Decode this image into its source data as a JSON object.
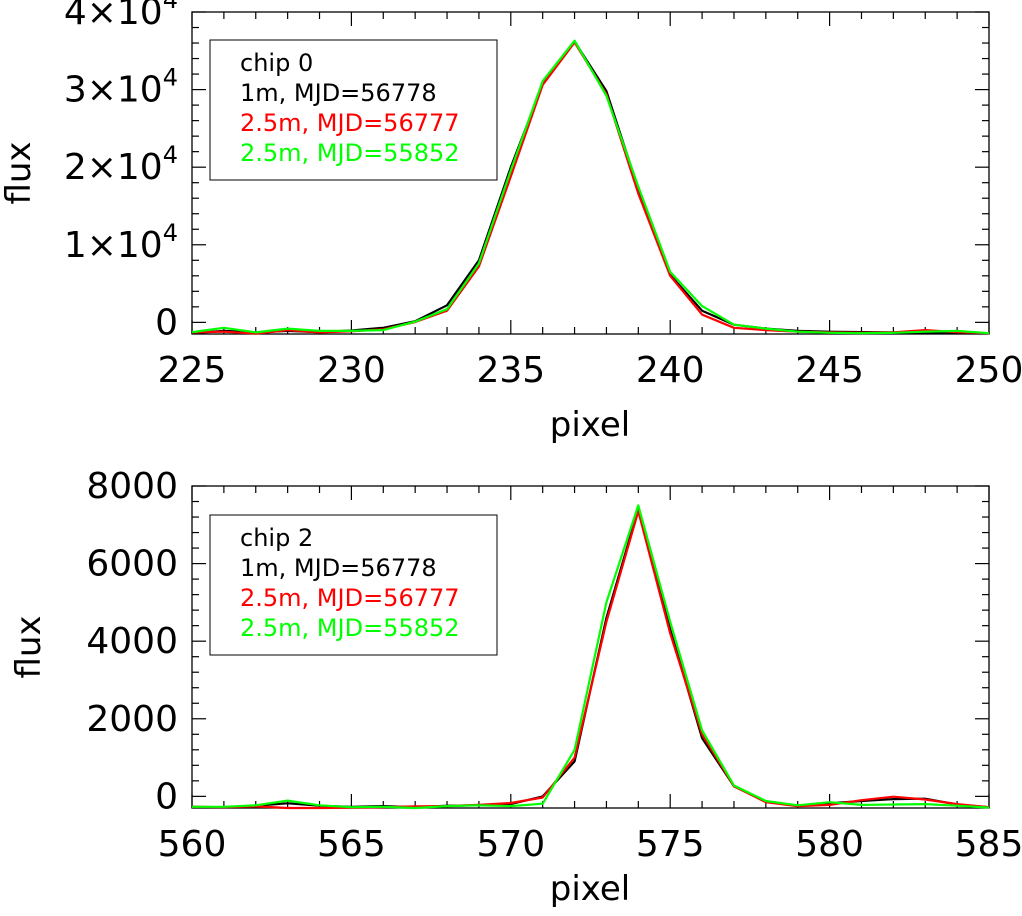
{
  "chart_data": [
    {
      "type": "line",
      "xlabel": "pixel",
      "ylabel": "flux",
      "xlim": [
        225,
        250
      ],
      "ylim": [
        -1500,
        40000
      ],
      "xticks": [
        225,
        230,
        235,
        240,
        245,
        250
      ],
      "xtick_labels": [
        "225",
        "230",
        "235",
        "240",
        "245",
        "250"
      ],
      "yticks": [
        0,
        10000,
        20000,
        30000,
        40000
      ],
      "ytick_labels": [
        {
          "base": "0",
          "exp": ""
        },
        {
          "base": "1×10",
          "exp": "4"
        },
        {
          "base": "2×10",
          "exp": "4"
        },
        {
          "base": "3×10",
          "exp": "4"
        },
        {
          "base": "4×10",
          "exp": "4"
        }
      ],
      "legend": {
        "position": "top-left",
        "title": "chip 0",
        "entries": [
          {
            "label": "1m, MJD=56778",
            "color": "#000000"
          },
          {
            "label": "2.5m, MJD=56777",
            "color": "#ff0000"
          },
          {
            "label": "2.5m, MJD=55852",
            "color": "#00ff00"
          }
        ]
      },
      "x": [
        225,
        226,
        227,
        228,
        229,
        230,
        231,
        232,
        233,
        234,
        235,
        236,
        237,
        238,
        239,
        240,
        241,
        242,
        243,
        244,
        245,
        246,
        247,
        248,
        249,
        250
      ],
      "series": [
        {
          "name": "1m, MJD=56778",
          "color": "#000000",
          "values": [
            -1400,
            -1100,
            -1300,
            -1100,
            -1250,
            -1050,
            -700,
            150,
            2200,
            8000,
            20000,
            30700,
            36200,
            29800,
            17200,
            6100,
            1500,
            -300,
            -800,
            -1100,
            -1200,
            -1250,
            -1300,
            -1350,
            -1300,
            -1400
          ]
        },
        {
          "name": "2.5m, MJD=56777",
          "color": "#ff0000",
          "values": [
            -1300,
            -1200,
            -1450,
            -1000,
            -1300,
            -1150,
            -900,
            50,
            1500,
            7200,
            18800,
            30600,
            36100,
            29400,
            16600,
            6000,
            1000,
            -700,
            -1000,
            -1200,
            -1300,
            -1350,
            -1300,
            -1000,
            -1250,
            -1400
          ]
        },
        {
          "name": "2.5m, MJD=55852",
          "color": "#00ff00",
          "values": [
            -1250,
            -700,
            -1300,
            -800,
            -1100,
            -1100,
            -1000,
            100,
            1700,
            7600,
            19600,
            31100,
            36300,
            29200,
            17500,
            6500,
            2100,
            -300,
            -800,
            -1200,
            -1350,
            -1400,
            -1350,
            -1200,
            -1100,
            -1400
          ]
        }
      ]
    },
    {
      "type": "line",
      "xlabel": "pixel",
      "ylabel": "flux",
      "xlim": [
        560,
        585
      ],
      "ylim": [
        -300,
        8000
      ],
      "xticks": [
        560,
        565,
        570,
        575,
        580,
        585
      ],
      "xtick_labels": [
        "560",
        "565",
        "570",
        "575",
        "580",
        "585"
      ],
      "yticks": [
        0,
        2000,
        4000,
        6000,
        8000
      ],
      "ytick_labels": [
        {
          "base": "0",
          "exp": ""
        },
        {
          "base": "2000",
          "exp": ""
        },
        {
          "base": "4000",
          "exp": ""
        },
        {
          "base": "6000",
          "exp": ""
        },
        {
          "base": "8000",
          "exp": ""
        }
      ],
      "legend": {
        "position": "top-left",
        "title": "chip 2",
        "entries": [
          {
            "label": "1m, MJD=56778",
            "color": "#000000"
          },
          {
            "label": "2.5m, MJD=56777",
            "color": "#ff0000"
          },
          {
            "label": "2.5m, MJD=55852",
            "color": "#00ff00"
          }
        ]
      },
      "x": [
        560,
        561,
        562,
        563,
        564,
        565,
        566,
        567,
        568,
        569,
        570,
        571,
        572,
        573,
        574,
        575,
        576,
        577,
        578,
        579,
        580,
        581,
        582,
        583,
        584,
        585
      ],
      "series": [
        {
          "name": "1m, MJD=56778",
          "color": "#000000",
          "values": [
            -270,
            -280,
            -240,
            -180,
            -240,
            -270,
            -250,
            -280,
            -240,
            -230,
            -200,
            0,
            900,
            4600,
            7400,
            4300,
            1500,
            260,
            -130,
            -240,
            -180,
            -120,
            -70,
            -60,
            -210,
            -280
          ]
        },
        {
          "name": "2.5m, MJD=56777",
          "color": "#ff0000",
          "values": [
            -270,
            -280,
            -260,
            -300,
            -300,
            -290,
            -280,
            -260,
            -250,
            -220,
            -170,
            -30,
            1000,
            4500,
            7350,
            4200,
            1600,
            260,
            -150,
            -250,
            -220,
            -100,
            -10,
            -80,
            -200,
            -280
          ]
        },
        {
          "name": "2.5m, MJD=55852",
          "color": "#00ff00",
          "values": [
            -270,
            -270,
            -230,
            -110,
            -230,
            -280,
            -270,
            -300,
            -250,
            -230,
            -250,
            -190,
            1200,
            5000,
            7500,
            4500,
            1700,
            280,
            -120,
            -230,
            -150,
            -220,
            -210,
            -200,
            -240,
            -290
          ]
        }
      ]
    }
  ]
}
